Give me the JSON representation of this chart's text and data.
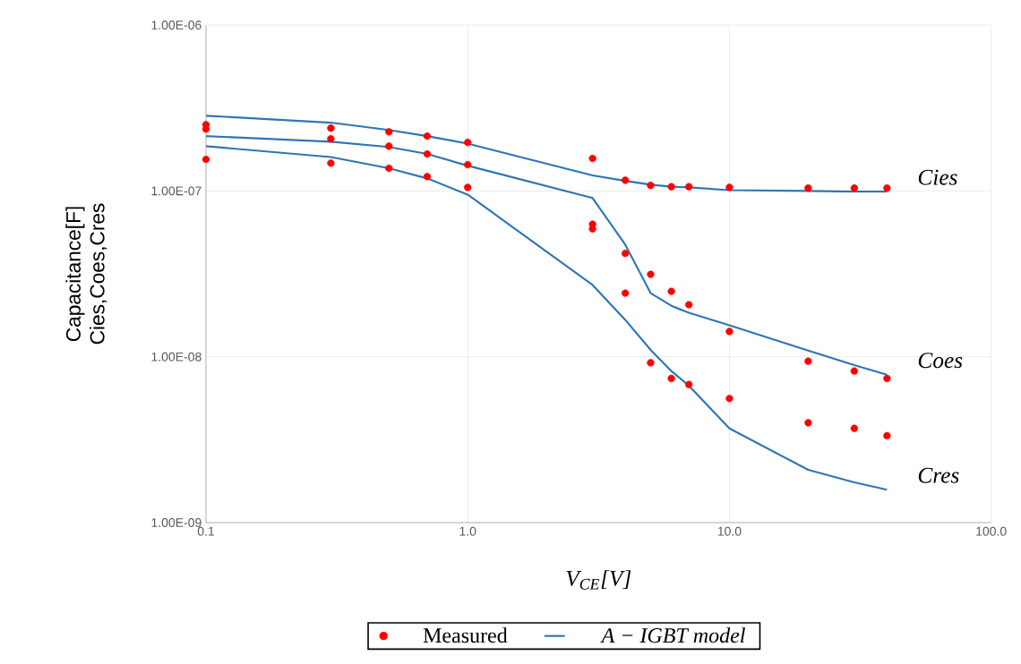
{
  "chart_data": {
    "type": "line",
    "xlabel": "V$_{CE}$[V]",
    "ylabel": "Capacitance[F] Cies,Coes,Cres",
    "log": "xy",
    "grid": true,
    "legend": "bottom",
    "xlim": [
      0.1,
      100
    ],
    "ylim": [
      1e-09,
      1e-06
    ],
    "xticks": [
      {
        "value": 0.1,
        "label": "0.1"
      },
      {
        "value": 1,
        "label": "1.0"
      },
      {
        "value": 10,
        "label": "10.0"
      },
      {
        "value": 100,
        "label": "100.0"
      }
    ],
    "yticks": [
      {
        "value": 1e-09,
        "label": "1.00E-09"
      },
      {
        "value": 1e-08,
        "label": "1.00E-08"
      },
      {
        "value": 1e-07,
        "label": "1.00E-07"
      },
      {
        "value": 1e-06,
        "label": "1.00E-06"
      }
    ],
    "x": [
      0.1,
      0.3,
      0.5,
      0.7,
      1,
      3,
      4,
      5,
      6,
      7,
      10,
      20,
      30,
      40
    ],
    "series": [
      {
        "name": "Measured",
        "type": "scatter",
        "color": "#ff0000",
        "values": [
          2.51e-07,
          2.39e-07,
          2.27e-07,
          2.14e-07,
          1.96e-07,
          1.57e-07,
          1.16e-07,
          1.08e-07,
          1.06e-07,
          1.06e-07,
          1.05e-07,
          1.04e-07,
          1.04e-07,
          1.04e-07
        ]
      },
      {
        "type": "scatter",
        "color": "#ff0000",
        "values": [
          2.36e-07,
          2.06e-07,
          1.86e-07,
          1.67e-07,
          1.44e-07,
          6.3e-08,
          4.2e-08,
          3.14e-08,
          2.48e-08,
          2.06e-08,
          1.42e-08,
          9.4e-09,
          8.2e-09,
          7.4e-09
        ]
      },
      {
        "type": "scatter",
        "color": "#ff0000",
        "values": [
          1.55e-07,
          1.47e-07,
          1.37e-07,
          1.22e-07,
          1.05e-07,
          5.9e-08,
          2.42e-08,
          9.2e-09,
          7.4e-09,
          6.8e-09,
          5.6e-09,
          4e-09,
          3.7e-09,
          3.34e-09
        ]
      },
      {
        "name": "A − IGBT model",
        "color": "#2e75b6",
        "values": [
          2.84e-07,
          2.58e-07,
          2.33e-07,
          2.14e-07,
          1.93e-07,
          1.24e-07,
          1.15e-07,
          1.09e-07,
          1.06e-07,
          1.05e-07,
          1.01e-07,
          1e-07,
          9.9e-08,
          9.9e-08
        ]
      },
      {
        "color": "#2e75b6",
        "values": [
          2.14e-07,
          1.98e-07,
          1.84e-07,
          1.67e-07,
          1.42e-07,
          9.06e-08,
          4.74e-08,
          2.42e-08,
          2.03e-08,
          1.84e-08,
          1.55e-08,
          1.09e-08,
          8.9e-09,
          7.8e-09
        ]
      },
      {
        "color": "#2e75b6",
        "values": [
          1.86e-07,
          1.6e-07,
          1.37e-07,
          1.19e-07,
          9.5e-08,
          2.71e-08,
          1.67e-08,
          1.1e-08,
          8.2e-09,
          6.7e-09,
          3.7e-09,
          2.08e-09,
          1.75e-09,
          1.58e-09
        ]
      }
    ],
    "annotations": [
      "Cies",
      "Coes",
      "Cres"
    ]
  }
}
